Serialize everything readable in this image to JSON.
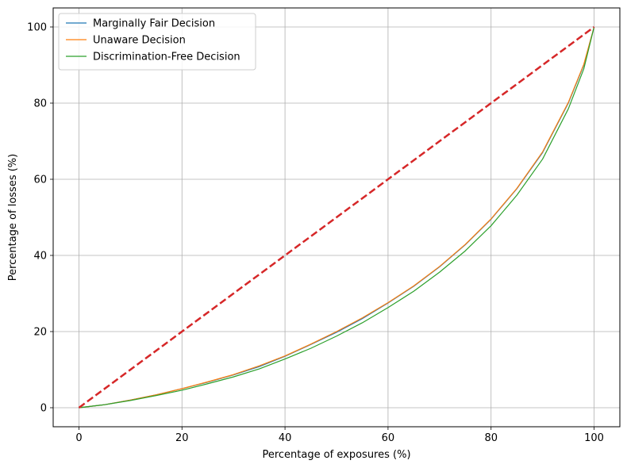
{
  "chart_data": {
    "type": "line",
    "title": "",
    "xlabel": "Percentage of exposures (%)",
    "ylabel": "Percentage of losses (%)",
    "xlim": [
      -5,
      105
    ],
    "ylim": [
      -5,
      105
    ],
    "xticks": [
      0,
      20,
      40,
      60,
      80,
      100
    ],
    "yticks": [
      0,
      20,
      40,
      60,
      80,
      100
    ],
    "grid": true,
    "legend_position": "top-left",
    "series": [
      {
        "name": "Marginally Fair Decision",
        "color": "#1f77b4",
        "style": "solid",
        "x": [
          0,
          5,
          10,
          15,
          20,
          25,
          30,
          35,
          40,
          45,
          50,
          55,
          60,
          65,
          70,
          75,
          80,
          85,
          90,
          95,
          98,
          100
        ],
        "y": [
          0,
          0.8,
          2.0,
          3.4,
          5.0,
          6.7,
          8.6,
          10.8,
          13.5,
          16.6,
          19.8,
          23.4,
          27.5,
          31.9,
          37.0,
          42.8,
          49.5,
          57.5,
          67.0,
          80.0,
          90.0,
          100
        ]
      },
      {
        "name": "Unaware Decision",
        "color": "#ff7f0e",
        "style": "solid",
        "x": [
          0,
          5,
          10,
          15,
          20,
          25,
          30,
          35,
          40,
          45,
          50,
          55,
          60,
          65,
          70,
          75,
          80,
          85,
          90,
          95,
          98,
          100
        ],
        "y": [
          0,
          0.8,
          2.0,
          3.4,
          5.0,
          6.8,
          8.7,
          11.0,
          13.6,
          16.7,
          20.0,
          23.6,
          27.6,
          32.0,
          37.1,
          42.9,
          49.6,
          57.6,
          67.2,
          80.2,
          90.2,
          100
        ]
      },
      {
        "name": "Discrimination-Free Decision",
        "color": "#2ca02c",
        "style": "solid",
        "x": [
          0,
          5,
          10,
          15,
          20,
          25,
          30,
          35,
          40,
          45,
          50,
          55,
          60,
          65,
          70,
          75,
          80,
          85,
          90,
          95,
          98,
          100
        ],
        "y": [
          0,
          0.8,
          1.9,
          3.2,
          4.6,
          6.3,
          8.1,
          10.2,
          12.8,
          15.6,
          18.8,
          22.3,
          26.3,
          30.6,
          35.6,
          41.2,
          47.8,
          55.8,
          65.3,
          78.5,
          89.0,
          100
        ]
      },
      {
        "name": "",
        "color": "#d62728",
        "style": "dashed",
        "x": [
          0,
          100
        ],
        "y": [
          0,
          100
        ]
      }
    ]
  }
}
